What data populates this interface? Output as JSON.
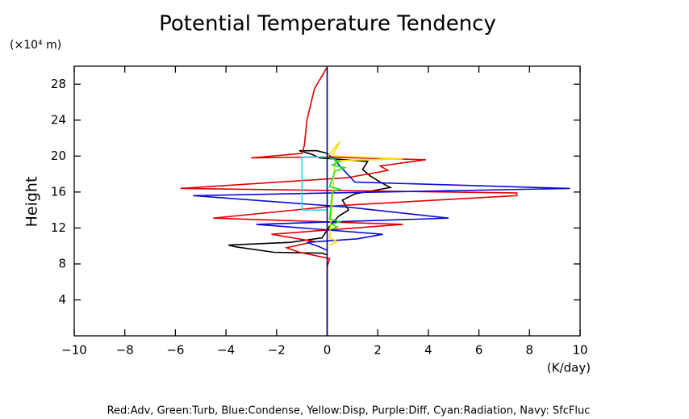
{
  "chart_data": {
    "type": "profile",
    "title": "Potential Temperature Tendency",
    "y_label": "Height",
    "y_unit": "(×10⁴ m)",
    "x_unit": "(K/day)",
    "note": "Red:Adv, Green:Turb, Blue:Condense, Yellow:Disp, Purple:Diff, Cyan:Radiation, Navy: SfcFluc",
    "xlim": [
      -10,
      10
    ],
    "xticks": [
      {
        "value": -10,
        "label": "−10"
      },
      {
        "value": -8,
        "label": "−8"
      },
      {
        "value": -6,
        "label": "−6"
      },
      {
        "value": -4,
        "label": "−4"
      },
      {
        "value": -2,
        "label": "−2"
      },
      0,
      2,
      4,
      6,
      8,
      10
    ],
    "ylim": [
      0,
      30
    ],
    "yticks": [
      4,
      8,
      12,
      16,
      20,
      24,
      28
    ],
    "series": [
      {
        "color": "#000000",
        "x": [
          0,
          -0.4,
          -1.1,
          -0.6,
          -0.3,
          1.6,
          1.4,
          1.7,
          2.1,
          2.5,
          1.1,
          0.6,
          0.85,
          0.45,
          0.1,
          -0.2,
          -1.45,
          -3.9,
          -3.6,
          -2.1,
          -0.2,
          0
        ],
        "y": [
          20.3,
          20.6,
          20.6,
          20.2,
          19.8,
          19.4,
          18.5,
          17.8,
          17.1,
          16.5,
          15.8,
          15.1,
          14.0,
          13.3,
          12.2,
          10.9,
          10.4,
          10.1,
          9.9,
          9.3,
          9.2,
          9.0
        ]
      },
      {
        "color": "#e00000",
        "x": [
          0,
          -0.5,
          -0.8,
          -0.9,
          -1.0,
          -3.0,
          -0.2,
          3.9,
          2.1,
          2.4,
          0.8,
          -5.8,
          7.5,
          7.5,
          0.5,
          -4.5,
          3.0,
          -2.2,
          -0.5,
          -1.6,
          -1.1,
          0.1,
          0,
          0
        ],
        "y": [
          29.9,
          27.5,
          24.0,
          21.2,
          20.3,
          19.8,
          19.9,
          19.6,
          18.9,
          18.4,
          17.6,
          16.4,
          15.9,
          15.6,
          14.5,
          13.1,
          12.4,
          11.3,
          10.5,
          9.8,
          9.3,
          8.6,
          7.7,
          0
        ]
      },
      {
        "color": "#0a0ad6",
        "x": [
          0,
          0.3,
          0.5,
          0.8,
          1.1,
          9.6,
          -5.3,
          0.9,
          4.8,
          -2.8,
          2.2,
          1.2,
          -0.8,
          -0.3,
          0
        ],
        "y": [
          20.3,
          19.6,
          18.9,
          18.0,
          17.1,
          16.4,
          15.6,
          14.3,
          13.1,
          12.4,
          11.3,
          10.8,
          10.4,
          9.9,
          9.5
        ]
      },
      {
        "color": "#ffd800",
        "x": [
          0,
          0.5,
          0.2,
          3.0,
          0.5,
          0.3,
          0.1,
          0.4,
          0.1
        ],
        "y": [
          19.9,
          21.6,
          20.0,
          19.7,
          19.5,
          19.2,
          10.9,
          10.5,
          10.1
        ]
      },
      {
        "color": "#19e619",
        "x": [
          0.1,
          0.5,
          0.2,
          0.7,
          0.3,
          0.1,
          0.5,
          0.2,
          0.1,
          0.5,
          0.2,
          0.4,
          0.1
        ],
        "y": [
          19.8,
          19.4,
          19.0,
          18.7,
          18.3,
          16.6,
          16.3,
          16.0,
          13.0,
          12.7,
          12.4,
          12.1,
          11.8
        ]
      },
      {
        "color": "#30d8e8",
        "x": [
          0,
          -1,
          -1,
          0
        ],
        "y": [
          19.9,
          19.9,
          14.0,
          14.0
        ]
      },
      {
        "color": "#000080",
        "x": [
          0,
          0
        ],
        "y": [
          0,
          29.9
        ]
      }
    ]
  }
}
